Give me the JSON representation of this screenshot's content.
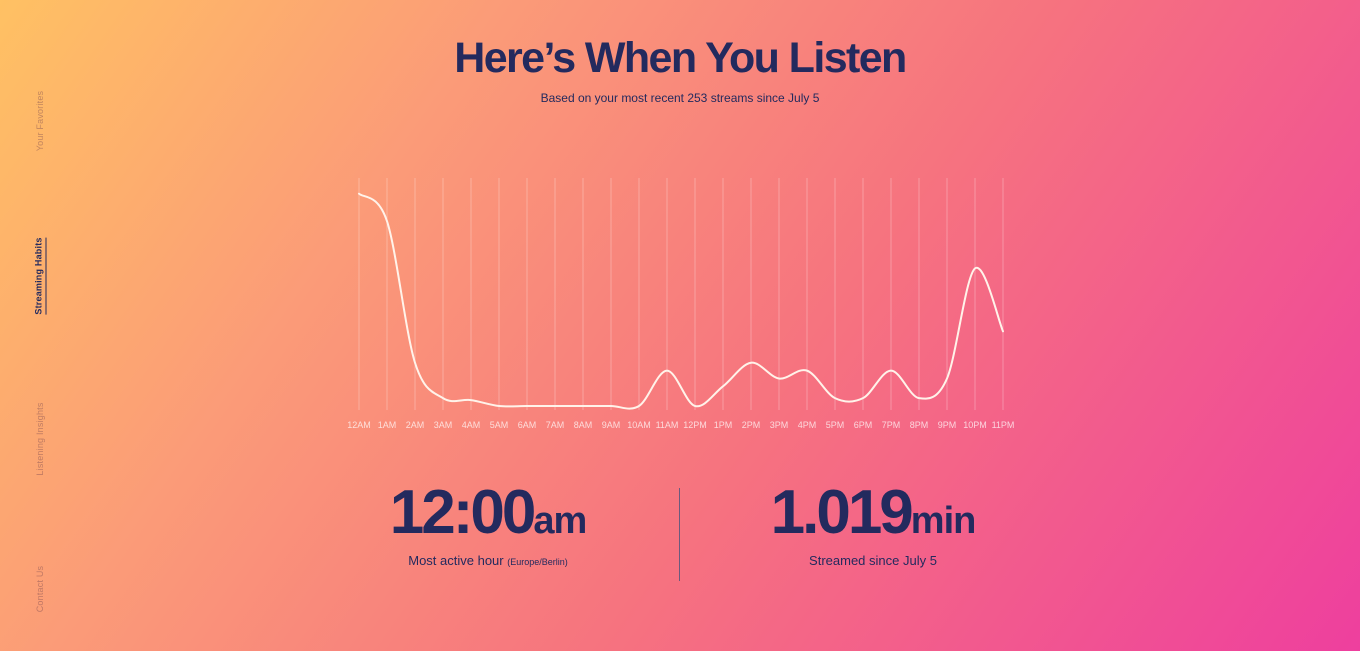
{
  "nav": {
    "items": [
      {
        "label": "Your Favorites",
        "active": false
      },
      {
        "label": "Streaming Habits",
        "active": true
      },
      {
        "label": "Listening Insights",
        "active": false
      },
      {
        "label": "Contact Us",
        "active": false
      }
    ]
  },
  "header": {
    "title": "Here’s When You Listen",
    "subtitle": "Based on your most recent 253 streams since July 5"
  },
  "chart_data": {
    "type": "line",
    "title": "",
    "xlabel": "",
    "ylabel": "",
    "x": [
      "12AM",
      "1AM",
      "2AM",
      "3AM",
      "4AM",
      "5AM",
      "6AM",
      "7AM",
      "8AM",
      "9AM",
      "10AM",
      "11AM",
      "12PM",
      "1PM",
      "2PM",
      "3PM",
      "4PM",
      "5PM",
      "6PM",
      "7PM",
      "8PM",
      "9PM",
      "10PM",
      "11PM"
    ],
    "series": [
      {
        "values": [
          54,
          47,
          11,
          2,
          1.5,
          0,
          0,
          0,
          0,
          0,
          0,
          9,
          0,
          5,
          11,
          7,
          9,
          2,
          2,
          9,
          2,
          7,
          35,
          19
        ]
      }
    ],
    "ylim": [
      0,
      58
    ],
    "grid": "vertical",
    "line_color": "#fff3ea"
  },
  "stats": {
    "active_hour": {
      "value": "12:00",
      "unit": "am",
      "caption": "Most active hour",
      "timezone": "(Europe/Berlin)"
    },
    "streamed": {
      "value": "1.019",
      "unit": "min",
      "caption": "Streamed since July 5"
    }
  }
}
